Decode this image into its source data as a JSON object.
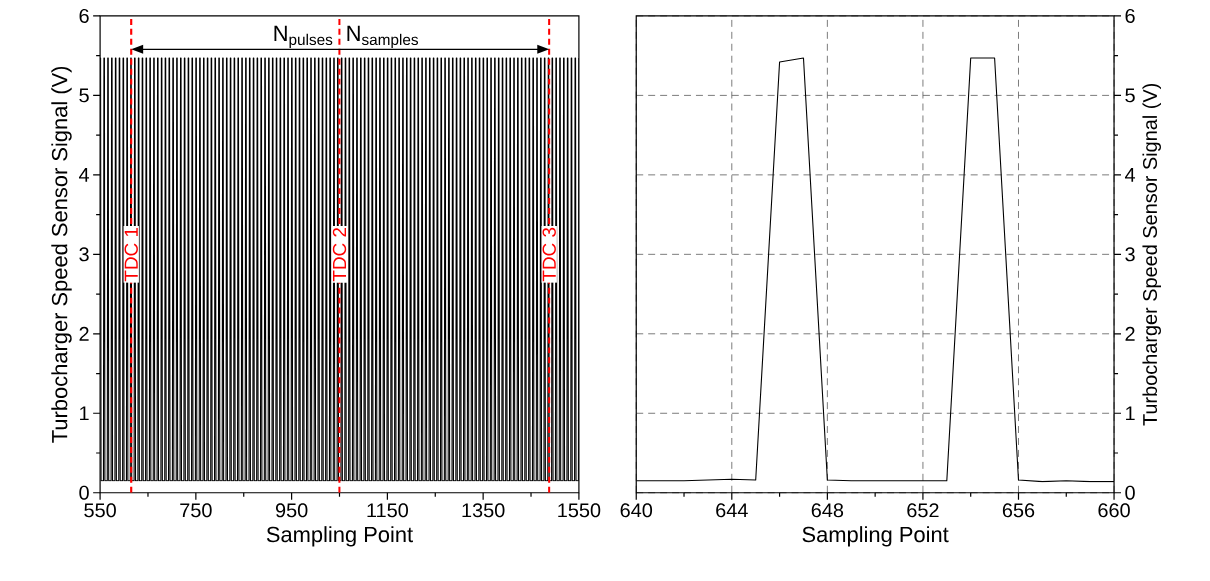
{
  "chart_data": [
    {
      "type": "line",
      "xlabel": "Sampling Point",
      "ylabel": "Turbocharger Speed Sensor Signal (V)",
      "xlim": [
        550,
        1550
      ],
      "xticks": [
        550,
        750,
        950,
        1150,
        1350,
        1550
      ],
      "ylim": [
        0,
        6
      ],
      "yticks": [
        0,
        1,
        2,
        3,
        4,
        5,
        6
      ],
      "grid": false,
      "series": [
        {
          "color": "#000000",
          "x": [
            550,
            551,
            552,
            557,
            558,
            559,
            560,
            565,
            566,
            567,
            568,
            573,
            574,
            575,
            576,
            581,
            582,
            583,
            584,
            589,
            590,
            591,
            592,
            597,
            598,
            599,
            600,
            605,
            606,
            607,
            608,
            613,
            614,
            615,
            616,
            621,
            622,
            623,
            624,
            629,
            630,
            631,
            632,
            637,
            638,
            639,
            640,
            645,
            646,
            647,
            648,
            653,
            654,
            655,
            656,
            661,
            662,
            663,
            664,
            669,
            670,
            671,
            672,
            677,
            678,
            679,
            680,
            685,
            686,
            687,
            688,
            693,
            694,
            695,
            696,
            701,
            702,
            703,
            704,
            709,
            710,
            711,
            712,
            717,
            718,
            719,
            720,
            725,
            726,
            727,
            728,
            733,
            734,
            735,
            736,
            741,
            742,
            743,
            744,
            749,
            750,
            751,
            752,
            757,
            758,
            759,
            760,
            765,
            766,
            767,
            768,
            773,
            774,
            775,
            776,
            781,
            782,
            783,
            784,
            789,
            790,
            791,
            792,
            797,
            798,
            799,
            800,
            805,
            806,
            807,
            808,
            813,
            814,
            815,
            816,
            821,
            822,
            823,
            824,
            829,
            830,
            831,
            832,
            837,
            838,
            839,
            840,
            845,
            846,
            847,
            848,
            853,
            854,
            855,
            856,
            861,
            862,
            863,
            864,
            869,
            870,
            871,
            872,
            877,
            878,
            879,
            880,
            885,
            886,
            887,
            888,
            893,
            894,
            895,
            896,
            901,
            902,
            903,
            904,
            909,
            910,
            911,
            912,
            917,
            918,
            919,
            920,
            925,
            926,
            927,
            928,
            933,
            934,
            935,
            936,
            941,
            942,
            943,
            944,
            949,
            950,
            951,
            952,
            957,
            958,
            959,
            960,
            965,
            966,
            967,
            968,
            973,
            974,
            975,
            976,
            981,
            982,
            983,
            984,
            989,
            990,
            991,
            992,
            997,
            998,
            999,
            1000,
            1005,
            1006,
            1007,
            1008,
            1013,
            1014,
            1015,
            1016,
            1021,
            1022,
            1023,
            1024,
            1029,
            1030,
            1031,
            1032,
            1037,
            1038,
            1039,
            1040,
            1045,
            1046,
            1047,
            1048,
            1053,
            1054,
            1055,
            1056,
            1061,
            1062,
            1063,
            1064,
            1069,
            1070,
            1071,
            1072,
            1077,
            1078,
            1079,
            1080,
            1085,
            1086,
            1087,
            1088,
            1093,
            1094,
            1095,
            1096,
            1101,
            1102,
            1103,
            1104,
            1109,
            1110,
            1111,
            1112,
            1117,
            1118,
            1119,
            1120,
            1125,
            1126,
            1127,
            1128,
            1133,
            1134,
            1135,
            1136,
            1141,
            1142,
            1143,
            1144,
            1149,
            1150,
            1151,
            1152,
            1157,
            1158,
            1159,
            1160,
            1165,
            1166,
            1167,
            1168,
            1173,
            1174,
            1175,
            1176,
            1181,
            1182,
            1183,
            1184,
            1189,
            1190,
            1191,
            1192,
            1197,
            1198,
            1199,
            1200,
            1205,
            1206,
            1207,
            1208,
            1213,
            1214,
            1215,
            1216,
            1221,
            1222,
            1223,
            1224,
            1229,
            1230,
            1231,
            1232,
            1237,
            1238,
            1239,
            1240,
            1245,
            1246,
            1247,
            1248,
            1253,
            1254,
            1255,
            1256,
            1261,
            1262,
            1263,
            1264,
            1269,
            1270,
            1271,
            1272,
            1277,
            1278,
            1279,
            1280,
            1285,
            1286,
            1287,
            1288,
            1293,
            1294,
            1295,
            1296,
            1301,
            1302,
            1303,
            1304,
            1309,
            1310,
            1311,
            1312,
            1317,
            1318,
            1319,
            1320,
            1325,
            1326,
            1327,
            1328,
            1333,
            1334,
            1335,
            1336,
            1341,
            1342,
            1343,
            1344,
            1349,
            1350,
            1351,
            1352,
            1357,
            1358,
            1359,
            1360,
            1365,
            1366,
            1367,
            1368,
            1373,
            1374,
            1375,
            1376,
            1381,
            1382,
            1383,
            1384,
            1389,
            1390,
            1391,
            1392,
            1397,
            1398,
            1399,
            1400,
            1405,
            1406,
            1407,
            1408,
            1413,
            1414,
            1415,
            1416,
            1421,
            1422,
            1423,
            1424,
            1429,
            1430,
            1431,
            1432,
            1437,
            1438,
            1439,
            1440,
            1445,
            1446,
            1447,
            1448,
            1453,
            1454,
            1455,
            1456,
            1461,
            1462,
            1463,
            1464,
            1469,
            1470,
            1471,
            1472,
            1477,
            1478,
            1479,
            1480,
            1485,
            1486,
            1487,
            1488,
            1493,
            1494,
            1495,
            1496,
            1501,
            1502,
            1503,
            1504,
            1509,
            1510,
            1511,
            1512,
            1517,
            1518,
            1519,
            1520,
            1525,
            1526,
            1527,
            1528,
            1533,
            1534,
            1535,
            1536,
            1541,
            1542,
            1543,
            1544,
            1549,
            1550
          ],
          "values": [
            5.47,
            5.47,
            0.15,
            0.15,
            5.47,
            5.47,
            0.15,
            0.15,
            5.47,
            5.47,
            0.15,
            0.15,
            5.47,
            5.47,
            0.15,
            0.15,
            5.47,
            5.47,
            0.15,
            0.15,
            5.47,
            5.47,
            0.15,
            0.15,
            5.47,
            5.47,
            0.15,
            0.15,
            5.47,
            5.47,
            0.15,
            0.15,
            5.47,
            5.47,
            0.15,
            0.15,
            5.47,
            5.47,
            0.15,
            0.15,
            5.47,
            5.47,
            0.15,
            0.15,
            5.47,
            5.47,
            0.15,
            0.15,
            5.47,
            5.47,
            0.15,
            0.15,
            5.47,
            5.47,
            0.15,
            0.15,
            5.47,
            5.47,
            0.15,
            0.15,
            5.47,
            5.47,
            0.15,
            0.15,
            5.47,
            5.47,
            0.15,
            0.15,
            5.47,
            5.47,
            0.15,
            0.15,
            5.47,
            5.47,
            0.15,
            0.15,
            5.47,
            5.47,
            0.15,
            0.15,
            5.47,
            5.47,
            0.15,
            0.15,
            5.47,
            5.47,
            0.15,
            0.15,
            5.47,
            5.47,
            0.15,
            0.15,
            5.47,
            5.47,
            0.15,
            0.15,
            5.47,
            5.47,
            0.15,
            0.15,
            5.47,
            5.47,
            0.15,
            0.15,
            5.47,
            5.47,
            0.15,
            0.15,
            5.47,
            5.47,
            0.15,
            0.15,
            5.47,
            5.47,
            0.15,
            0.15,
            5.47,
            5.47,
            0.15,
            0.15,
            5.47,
            5.47,
            0.15,
            0.15,
            5.47,
            5.47,
            0.15,
            0.15,
            5.47,
            5.47,
            0.15,
            0.15,
            5.47,
            5.47,
            0.15,
            0.15,
            5.47,
            5.47,
            0.15,
            0.15,
            5.47,
            5.47,
            0.15,
            0.15,
            5.47,
            5.47,
            0.15,
            0.15,
            5.47,
            5.47,
            0.15,
            0.15,
            5.47,
            5.47,
            0.15,
            0.15,
            5.47,
            5.47,
            0.15,
            0.15,
            5.47,
            5.47,
            0.15,
            0.15,
            5.47,
            5.47,
            0.15,
            0.15,
            5.47,
            5.47,
            0.15,
            0.15,
            5.47,
            5.47,
            0.15,
            0.15,
            5.47,
            5.47,
            0.15,
            0.15,
            5.47,
            5.47,
            0.15,
            0.15,
            5.47,
            5.47,
            0.15,
            0.15,
            5.47,
            5.47,
            0.15,
            0.15,
            5.47,
            5.47,
            0.15,
            0.15,
            5.47,
            5.47,
            0.15,
            0.15,
            5.47,
            5.47,
            0.15,
            0.15,
            5.47,
            5.47,
            0.15,
            0.15,
            5.47,
            5.47,
            0.15,
            0.15,
            5.47,
            5.47,
            0.15,
            0.15,
            5.47,
            5.47,
            0.15,
            0.15,
            5.47,
            5.47,
            0.15,
            0.15,
            5.47,
            5.47,
            0.15,
            0.15,
            5.47,
            5.47,
            0.15,
            0.15,
            5.47,
            5.47,
            0.15,
            0.15,
            5.47,
            5.47,
            0.15,
            0.15,
            5.47,
            5.47,
            0.15,
            0.15,
            5.47,
            5.47,
            0.15,
            0.15,
            5.47,
            5.47,
            0.15,
            0.15,
            5.47,
            5.47,
            0.15,
            0.15,
            5.47,
            5.47,
            0.15,
            0.15,
            5.47,
            5.47,
            0.15,
            0.15,
            5.47,
            5.47,
            0.15,
            0.15,
            5.47,
            5.47,
            0.15,
            0.15,
            5.47,
            5.47,
            0.15,
            0.15,
            5.47,
            5.47,
            0.15,
            0.15,
            5.47,
            5.47,
            0.15,
            0.15,
            5.47,
            5.47,
            0.15,
            0.15,
            5.47,
            5.47,
            0.15,
            0.15,
            5.47,
            5.47,
            0.15,
            0.15,
            5.47,
            5.47,
            0.15,
            0.15,
            5.47,
            5.47,
            0.15,
            0.15,
            5.47,
            5.47,
            0.15,
            0.15,
            5.47,
            5.47,
            0.15,
            0.15,
            5.47,
            5.47,
            0.15,
            0.15,
            5.47,
            5.47,
            0.15,
            0.15,
            5.47,
            5.47,
            0.15,
            0.15,
            5.47,
            5.47,
            0.15,
            0.15,
            5.47,
            5.47,
            0.15,
            0.15,
            5.47,
            5.47,
            0.15,
            0.15,
            5.47,
            5.47,
            0.15,
            0.15,
            5.47,
            5.47,
            0.15,
            0.15,
            5.47,
            5.47,
            0.15,
            0.15,
            5.47,
            5.47,
            0.15,
            0.15,
            5.47,
            5.47,
            0.15,
            0.15,
            5.47,
            5.47,
            0.15,
            0.15,
            5.47,
            5.47,
            0.15,
            0.15,
            5.47,
            5.47,
            0.15,
            0.15,
            5.47,
            5.47,
            0.15,
            0.15,
            5.47,
            5.47,
            0.15,
            0.15,
            5.47,
            5.47,
            0.15,
            0.15,
            5.47,
            5.47,
            0.15,
            0.15,
            5.47,
            5.47,
            0.15,
            0.15,
            5.47,
            5.47,
            0.15,
            0.15,
            5.47,
            5.47,
            0.15,
            0.15,
            5.47,
            5.47,
            0.15,
            0.15,
            5.47,
            5.47,
            0.15,
            0.15,
            5.47,
            5.47,
            0.15,
            0.15,
            5.47,
            5.47,
            0.15,
            0.15,
            5.47,
            5.47,
            0.15,
            0.15,
            5.47,
            5.47,
            0.15,
            0.15,
            5.47,
            5.47,
            0.15,
            0.15,
            5.47,
            5.47,
            0.15,
            0.15,
            5.47,
            5.47,
            0.15,
            0.15,
            5.47,
            5.47,
            0.15,
            0.15,
            5.47,
            5.47,
            0.15,
            0.15,
            5.47,
            5.47,
            0.15,
            0.15,
            5.47,
            5.47,
            0.15,
            0.15,
            5.47,
            5.47,
            0.15,
            0.15,
            5.47,
            5.47,
            0.15,
            0.15,
            5.47,
            5.47,
            0.15,
            0.15,
            5.47,
            5.47,
            0.15,
            0.15,
            5.47,
            5.47,
            0.15,
            0.15,
            5.47,
            5.47,
            0.15,
            0.15,
            5.47,
            5.47,
            0.15,
            0.15,
            5.47,
            5.47,
            0.15,
            0.15,
            5.47,
            5.47,
            0.15,
            0.15,
            5.47,
            5.47,
            0.15,
            0.15,
            5.47,
            5.47,
            0.15,
            0.15,
            5.47,
            5.47,
            0.15,
            0.15,
            5.47,
            5.47,
            0.15,
            0.15,
            5.47
          ]
        }
      ],
      "ref_lines": [
        {
          "axis": "x",
          "value": 615,
          "label": "TDC 1",
          "color": "#ff0000",
          "line_style": "dashed"
        },
        {
          "axis": "x",
          "value": 1050,
          "label": "TDC 2",
          "color": "#ff0000",
          "line_style": "dashed"
        },
        {
          "axis": "x",
          "value": 1488,
          "label": "TDC 3",
          "color": "#ff0000",
          "line_style": "dashed"
        }
      ],
      "annotations": [
        "N$_{pulses}$",
        "N$_{samples}$"
      ]
    },
    {
      "type": "line",
      "xlabel": "Sampling Point",
      "ylabel": "Turbocharger Speed Sensor Signal (V)",
      "xlim": [
        640,
        660
      ],
      "xticks": [
        640,
        644,
        648,
        652,
        656,
        660
      ],
      "ylim": [
        0,
        6
      ],
      "yticks": [
        0,
        1,
        2,
        3,
        4,
        5,
        6
      ],
      "grid": true,
      "x": [
        640,
        641,
        642,
        643,
        644,
        645,
        646,
        647,
        648,
        649,
        650,
        651,
        652,
        653,
        654,
        655,
        656,
        657,
        658,
        659,
        660
      ],
      "series": [
        {
          "color": "#000000",
          "values": [
            0.15,
            0.15,
            0.15,
            0.16,
            0.17,
            0.16,
            5.42,
            5.47,
            0.16,
            0.15,
            0.15,
            0.15,
            0.15,
            0.15,
            5.47,
            5.47,
            0.16,
            0.14,
            0.15,
            0.14,
            0.14
          ]
        }
      ]
    }
  ]
}
